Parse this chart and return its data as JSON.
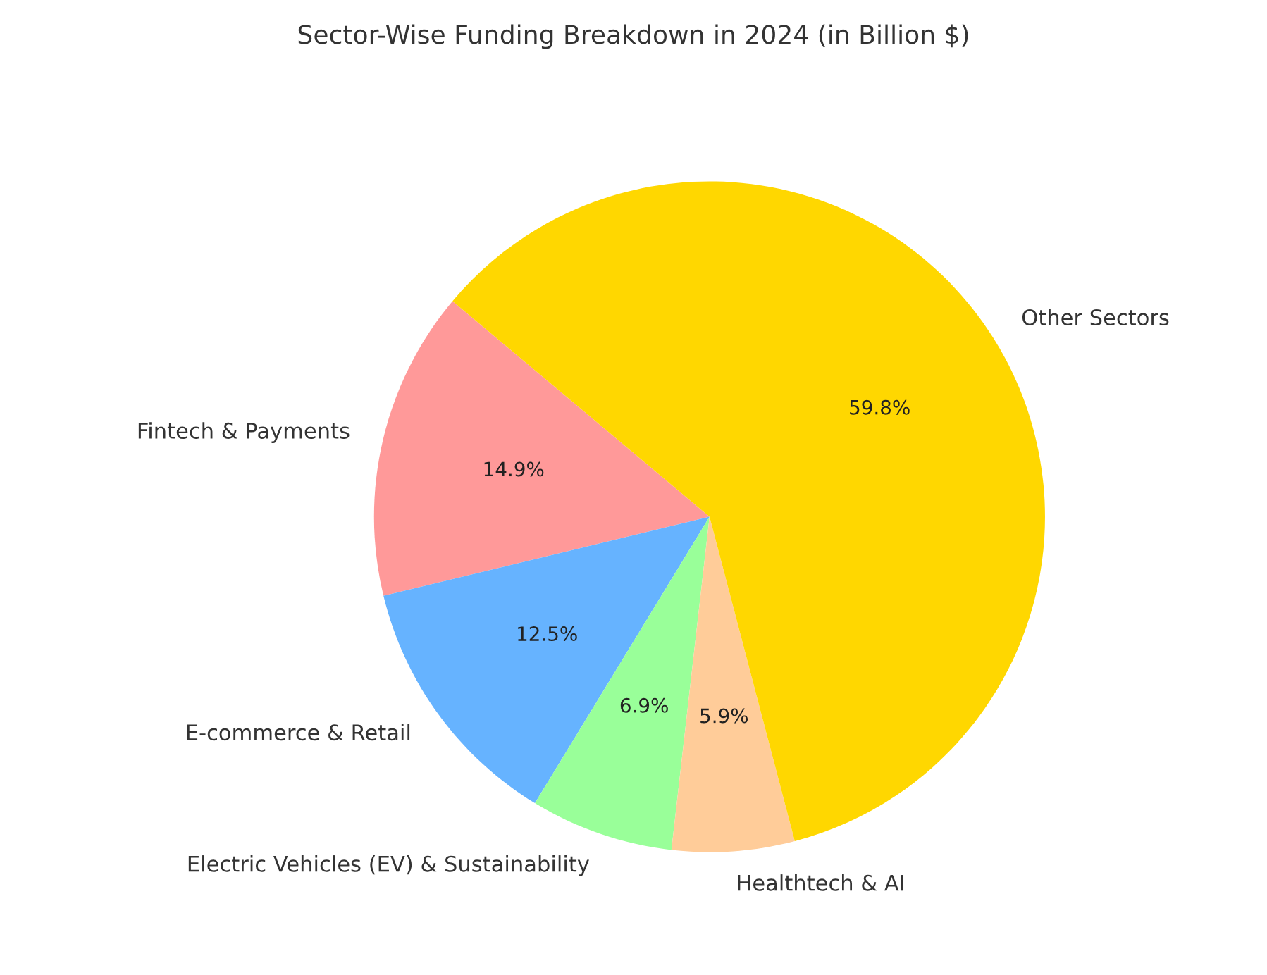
{
  "chart_data": {
    "type": "pie",
    "title": "Sector-Wise Funding Breakdown in 2024 (in Billion $)",
    "categories": [
      "Fintech & Payments",
      "E-commerce & Retail",
      "Electric Vehicles (EV) & Sustainability",
      "Healthtech & AI",
      "Other Sectors"
    ],
    "values": [
      14.9,
      12.5,
      6.9,
      5.9,
      59.8
    ],
    "value_labels": [
      "14.9%",
      "12.5%",
      "6.9%",
      "5.9%",
      "59.8%"
    ],
    "colors": [
      "#ff9999",
      "#66b3ff",
      "#99ff99",
      "#ffcc99",
      "#ffd700"
    ]
  }
}
